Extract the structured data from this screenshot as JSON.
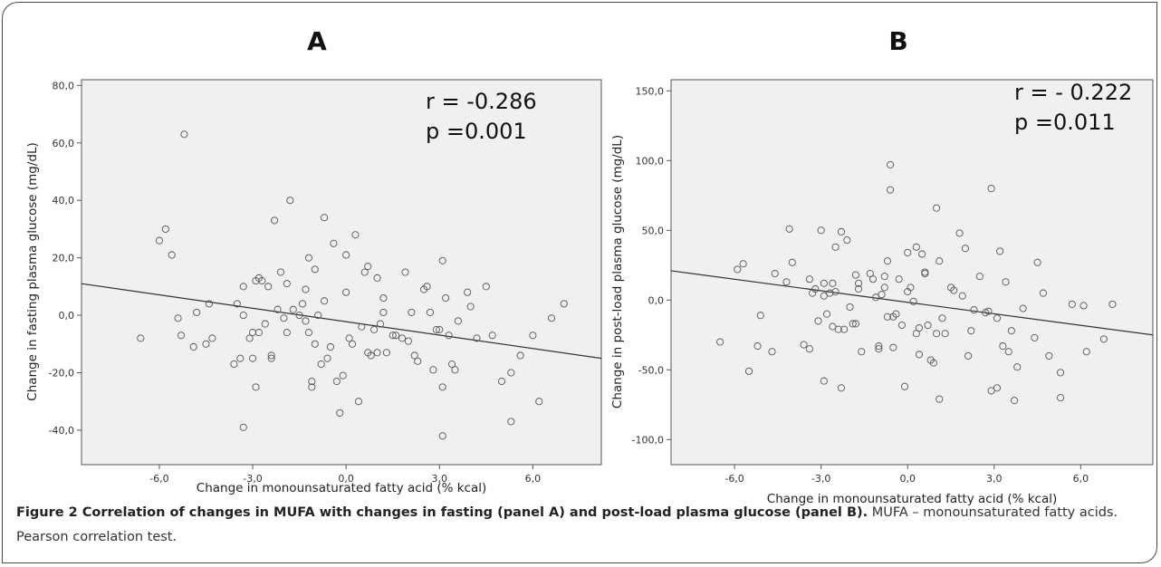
{
  "chart_data": [
    {
      "type": "scatter",
      "panel": "A",
      "xlabel": "Change in monounsaturated fatty acid (% kcal)",
      "ylabel": "Change in fasting plasma glucose (mg/dL)",
      "xlim": [
        -8.5,
        8.2
      ],
      "ylim": [
        -52,
        82
      ],
      "xticks": [
        -6,
        -3,
        0,
        3,
        6
      ],
      "xtick_labels": [
        "-6,0",
        "-3,0",
        "0,0",
        "3,0",
        "6,0"
      ],
      "yticks": [
        -40,
        -20,
        0,
        20,
        40,
        60,
        80
      ],
      "ytick_labels": [
        "-40,0",
        "-20,0",
        "0,0",
        "20,0",
        "40,0",
        "60,0",
        "80,0"
      ],
      "stats": [
        "r = -0.286",
        "p =0.001"
      ],
      "fit_line": {
        "x": [
          -8.5,
          8.2
        ],
        "y": [
          11,
          -15
        ]
      },
      "points": [
        [
          -6.6,
          -8
        ],
        [
          -6.0,
          26
        ],
        [
          -5.8,
          30
        ],
        [
          -5.6,
          21
        ],
        [
          -5.4,
          -1
        ],
        [
          -5.3,
          -7
        ],
        [
          -5.2,
          63
        ],
        [
          -4.9,
          -11
        ],
        [
          -4.8,
          1
        ],
        [
          -4.5,
          -10
        ],
        [
          -4.4,
          4
        ],
        [
          -4.3,
          -8
        ],
        [
          -3.6,
          -17
        ],
        [
          -3.5,
          4
        ],
        [
          -3.4,
          -15
        ],
        [
          -3.3,
          0
        ],
        [
          -3.3,
          10
        ],
        [
          -3.3,
          -39
        ],
        [
          -3.1,
          -8
        ],
        [
          -3.0,
          -15
        ],
        [
          -3.0,
          -6
        ],
        [
          -2.9,
          -25
        ],
        [
          -2.9,
          12
        ],
        [
          -2.8,
          13
        ],
        [
          -2.8,
          -6
        ],
        [
          -2.7,
          12
        ],
        [
          -2.6,
          -3
        ],
        [
          -2.5,
          10
        ],
        [
          -2.4,
          -14
        ],
        [
          -2.4,
          -15
        ],
        [
          -2.3,
          33
        ],
        [
          -2.2,
          2
        ],
        [
          -2.1,
          15
        ],
        [
          -2.0,
          -1
        ],
        [
          -1.9,
          11
        ],
        [
          -1.9,
          -6
        ],
        [
          -1.8,
          40
        ],
        [
          -1.7,
          2
        ],
        [
          -1.5,
          0
        ],
        [
          -1.4,
          4
        ],
        [
          -1.3,
          9
        ],
        [
          -1.3,
          -2
        ],
        [
          -1.2,
          20
        ],
        [
          -1.2,
          -6
        ],
        [
          -1.1,
          -23
        ],
        [
          -1.1,
          -25
        ],
        [
          -1.0,
          -10
        ],
        [
          -1.0,
          16
        ],
        [
          -0.9,
          0
        ],
        [
          -0.8,
          -17
        ],
        [
          -0.7,
          34
        ],
        [
          -0.7,
          5
        ],
        [
          -0.6,
          -15
        ],
        [
          -0.5,
          -11
        ],
        [
          -0.4,
          25
        ],
        [
          -0.3,
          -23
        ],
        [
          -0.2,
          -34
        ],
        [
          -0.1,
          -21
        ],
        [
          0.0,
          8
        ],
        [
          0.0,
          21
        ],
        [
          0.1,
          -8
        ],
        [
          0.2,
          -10
        ],
        [
          0.3,
          28
        ],
        [
          0.4,
          -30
        ],
        [
          0.5,
          -4
        ],
        [
          0.6,
          15
        ],
        [
          0.7,
          17
        ],
        [
          0.7,
          -13
        ],
        [
          0.8,
          -14
        ],
        [
          0.9,
          -5
        ],
        [
          1.0,
          13
        ],
        [
          1.0,
          -13
        ],
        [
          1.1,
          -3
        ],
        [
          1.2,
          6
        ],
        [
          1.2,
          1
        ],
        [
          1.3,
          -13
        ],
        [
          1.5,
          -7
        ],
        [
          1.6,
          -7
        ],
        [
          1.8,
          -8
        ],
        [
          1.9,
          15
        ],
        [
          2.0,
          -9
        ],
        [
          2.1,
          1
        ],
        [
          2.2,
          -14
        ],
        [
          2.3,
          -16
        ],
        [
          2.5,
          9
        ],
        [
          2.6,
          10
        ],
        [
          2.7,
          1
        ],
        [
          2.8,
          -19
        ],
        [
          2.9,
          -5
        ],
        [
          3.0,
          -5
        ],
        [
          3.1,
          -25
        ],
        [
          3.1,
          19
        ],
        [
          3.1,
          -42
        ],
        [
          3.2,
          6
        ],
        [
          3.3,
          -7
        ],
        [
          3.4,
          -17
        ],
        [
          3.5,
          -19
        ],
        [
          3.6,
          -2
        ],
        [
          3.9,
          8
        ],
        [
          4.0,
          3
        ],
        [
          4.2,
          -8
        ],
        [
          4.5,
          10
        ],
        [
          4.7,
          -7
        ],
        [
          5.0,
          -23
        ],
        [
          5.3,
          -37
        ],
        [
          5.3,
          -20
        ],
        [
          5.6,
          -14
        ],
        [
          6.0,
          -7
        ],
        [
          6.2,
          -30
        ],
        [
          6.6,
          -1
        ],
        [
          7.0,
          4
        ]
      ]
    },
    {
      "type": "scatter",
      "panel": "B",
      "xlabel": "Change in monounsaturated fatty acid (% kcal)",
      "ylabel": "Change in post-load plasma glucose (mg/dL)",
      "xlim": [
        -8.2,
        8.5
      ],
      "ylim": [
        -118,
        158
      ],
      "xticks": [
        -6,
        -3,
        0,
        3,
        6
      ],
      "xtick_labels": [
        "-6,0",
        "-3,0",
        "0,0",
        "3,0",
        "6,0"
      ],
      "yticks": [
        -100,
        -50,
        0,
        50,
        100,
        150
      ],
      "ytick_labels": [
        "-100,0",
        "-50,0",
        "0,0",
        "50,0",
        "100,0",
        "150,0"
      ],
      "stats": [
        "r = - 0.222",
        "p =0.011"
      ],
      "fit_line": {
        "x": [
          -8.2,
          8.5
        ],
        "y": [
          21,
          -25
        ]
      },
      "points": [
        [
          -6.5,
          -30
        ],
        [
          -5.9,
          22
        ],
        [
          -5.7,
          26
        ],
        [
          -5.5,
          -51
        ],
        [
          -5.2,
          -33
        ],
        [
          -5.1,
          -11
        ],
        [
          -4.7,
          -37
        ],
        [
          -4.6,
          19
        ],
        [
          -4.2,
          13
        ],
        [
          -4.1,
          51
        ],
        [
          -4.0,
          27
        ],
        [
          -3.6,
          -32
        ],
        [
          -3.4,
          -35
        ],
        [
          -3.4,
          15
        ],
        [
          -3.3,
          5
        ],
        [
          -3.2,
          8
        ],
        [
          -3.1,
          -15
        ],
        [
          -3.0,
          50
        ],
        [
          -2.9,
          12
        ],
        [
          -2.9,
          -58
        ],
        [
          -2.9,
          3
        ],
        [
          -2.8,
          -10
        ],
        [
          -2.7,
          5
        ],
        [
          -2.6,
          12
        ],
        [
          -2.6,
          -19
        ],
        [
          -2.5,
          38
        ],
        [
          -2.5,
          6
        ],
        [
          -2.4,
          -21
        ],
        [
          -2.3,
          49
        ],
        [
          -2.3,
          -63
        ],
        [
          -2.2,
          -21
        ],
        [
          -2.1,
          43
        ],
        [
          -2.0,
          -5
        ],
        [
          -1.9,
          -17
        ],
        [
          -1.8,
          -17
        ],
        [
          -1.8,
          18
        ],
        [
          -1.7,
          8
        ],
        [
          -1.7,
          12
        ],
        [
          -1.6,
          -37
        ],
        [
          -1.3,
          19
        ],
        [
          -1.2,
          15
        ],
        [
          -1.1,
          2
        ],
        [
          -1.0,
          -35
        ],
        [
          -1.0,
          -33
        ],
        [
          -0.9,
          4
        ],
        [
          -0.8,
          9
        ],
        [
          -0.8,
          17
        ],
        [
          -0.7,
          28
        ],
        [
          -0.7,
          -12
        ],
        [
          -0.6,
          97
        ],
        [
          -0.6,
          79
        ],
        [
          -0.5,
          -34
        ],
        [
          -0.5,
          -12
        ],
        [
          -0.4,
          -10
        ],
        [
          -0.3,
          15
        ],
        [
          -0.2,
          -18
        ],
        [
          -0.1,
          -62
        ],
        [
          0.0,
          34
        ],
        [
          0.0,
          6
        ],
        [
          0.1,
          9
        ],
        [
          0.2,
          -1
        ],
        [
          0.3,
          38
        ],
        [
          0.3,
          -24
        ],
        [
          0.4,
          -20
        ],
        [
          0.4,
          -39
        ],
        [
          0.5,
          33
        ],
        [
          0.6,
          20
        ],
        [
          0.6,
          19
        ],
        [
          0.7,
          -18
        ],
        [
          0.8,
          -43
        ],
        [
          0.9,
          -45
        ],
        [
          1.0,
          66
        ],
        [
          1.0,
          -24
        ],
        [
          1.1,
          28
        ],
        [
          1.1,
          -71
        ],
        [
          1.2,
          -13
        ],
        [
          1.3,
          -24
        ],
        [
          1.5,
          9
        ],
        [
          1.6,
          7
        ],
        [
          1.8,
          48
        ],
        [
          1.9,
          3
        ],
        [
          2.0,
          37
        ],
        [
          2.1,
          -40
        ],
        [
          2.2,
          -22
        ],
        [
          2.3,
          -7
        ],
        [
          2.5,
          17
        ],
        [
          2.7,
          -9
        ],
        [
          2.8,
          -8
        ],
        [
          2.9,
          80
        ],
        [
          2.9,
          -65
        ],
        [
          3.1,
          -63
        ],
        [
          3.1,
          -13
        ],
        [
          3.2,
          35
        ],
        [
          3.3,
          -33
        ],
        [
          3.4,
          13
        ],
        [
          3.5,
          -37
        ],
        [
          3.6,
          -22
        ],
        [
          3.7,
          -72
        ],
        [
          3.8,
          -48
        ],
        [
          4.0,
          -6
        ],
        [
          4.4,
          -27
        ],
        [
          4.5,
          27
        ],
        [
          4.7,
          5
        ],
        [
          4.9,
          -40
        ],
        [
          5.3,
          -52
        ],
        [
          5.3,
          -70
        ],
        [
          5.7,
          -3
        ],
        [
          6.1,
          -4
        ],
        [
          6.2,
          -37
        ],
        [
          6.8,
          -28
        ],
        [
          7.1,
          -3
        ]
      ]
    }
  ],
  "caption": {
    "bold": "Figure 2 Correlation of changes in MUFA with changes in fasting (panel A) and post-load plasma glucose (panel B).",
    "rest": " MUFA – monounsaturated fatty acids. Pearson correlation test."
  }
}
